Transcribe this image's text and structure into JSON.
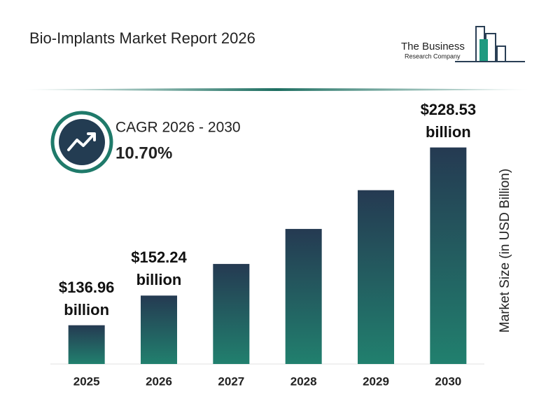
{
  "header": {
    "title": "Bio-Implants Market Report 2026",
    "logo_line1": "The Business",
    "logo_line2": "Research Company"
  },
  "chart_data": {
    "type": "bar",
    "categories": [
      "2025",
      "2026",
      "2027",
      "2028",
      "2029",
      "2030"
    ],
    "values": [
      136.96,
      152.24,
      168.53,
      186.56,
      206.52,
      228.53
    ],
    "value_labels": [
      "$136.96 billion",
      "$152.24 billion",
      null,
      null,
      null,
      "$228.53 billion"
    ],
    "colors": [
      "#253a52",
      "#21806e"
    ],
    "ylim": [
      117,
      254
    ],
    "y_label": "Market Size (in USD Billion)",
    "cagr_label": "CAGR 2026 - 2030",
    "cagr_value": "10.70%"
  }
}
